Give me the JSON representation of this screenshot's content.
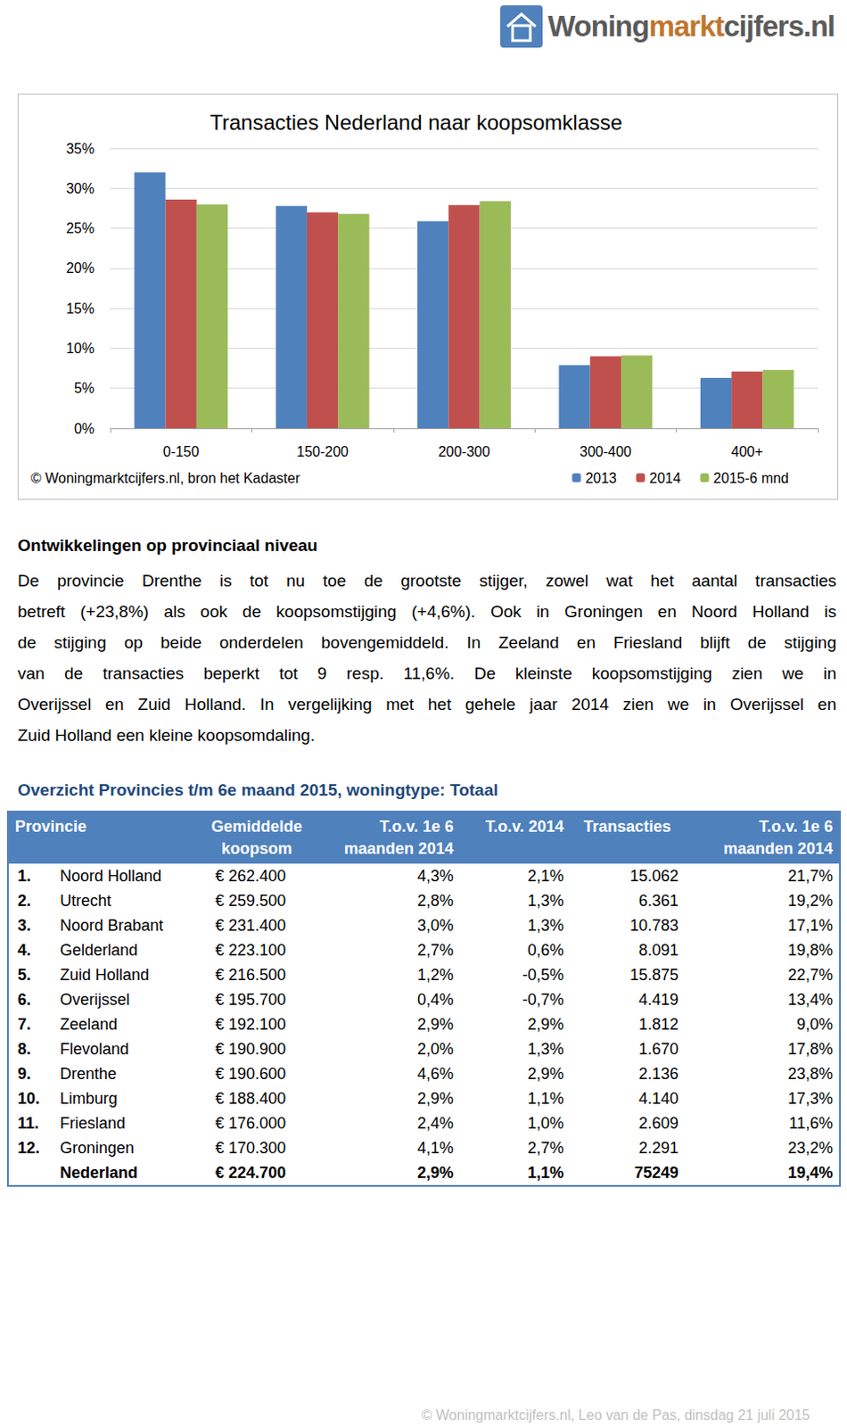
{
  "logo": [
    "Woning",
    "markt",
    "cijfers.nl"
  ],
  "chart_data": {
    "type": "bar",
    "title": "Transacties Nederland naar koopsomklasse",
    "categories": [
      "0-150",
      "150-200",
      "200-300",
      "300-400",
      "400+"
    ],
    "series": [
      {
        "name": "2013",
        "color": "#4f81bd",
        "values": [
          32.0,
          27.8,
          25.9,
          7.9,
          6.3
        ]
      },
      {
        "name": "2014",
        "color": "#c0504d",
        "values": [
          28.6,
          27.0,
          27.9,
          9.0,
          7.1
        ]
      },
      {
        "name": "2015-6 mnd",
        "color": "#9bbb59",
        "values": [
          28.0,
          26.8,
          28.4,
          9.1,
          7.3
        ]
      }
    ],
    "ylim": [
      0,
      35
    ],
    "yticks": [
      {
        "value": 0,
        "label": "0%"
      },
      {
        "value": 5,
        "label": "5%"
      },
      {
        "value": 10,
        "label": "10%"
      },
      {
        "value": 15,
        "label": "15%"
      },
      {
        "value": 20,
        "label": "20%"
      },
      {
        "value": 25,
        "label": "25%"
      },
      {
        "value": 30,
        "label": "30%"
      },
      {
        "value": 35,
        "label": "35%"
      }
    ],
    "grid": true,
    "legend": "lower right",
    "annotation": "© Woningmarktcijfers.nl, bron het Kadaster"
  },
  "section": {
    "heading": "Ontwikkelingen op provinciaal niveau",
    "lines": [
      "De provincie Drenthe is tot nu toe de grootste stijger, zowel wat het aantal transacties",
      "betreft (+23,8%) als ook de koopsomstijging (+4,6%). Ook in Groningen en Noord Holland is",
      "de stijging op beide onderdelen bovengemiddeld. In Zeeland en Friesland blijft de stijging",
      "van de transacties beperkt tot 9 resp. 11,6%. De kleinste koopsomstijging zien we in",
      "Overijssel en Zuid Holland. In vergelijking met het gehele jaar 2014 zien we in Overijssel en",
      "Zuid Holland een kleine koopsomdaling."
    ]
  },
  "table": {
    "title": "Overzicht Provincies t/m 6e maand 2015, woningtype: Totaal",
    "header": [
      [
        "Provincie"
      ],
      [
        "Gemiddelde",
        "koopsom"
      ],
      [
        "T.o.v. 1e 6",
        "maanden 2014"
      ],
      [
        "T.o.v. 2014"
      ],
      [
        "Transacties"
      ],
      [
        "T.o.v. 1e 6",
        "maanden 2014"
      ]
    ],
    "rows": [
      [
        "1.",
        "Noord Holland",
        "€ 262.400",
        "4,3%",
        "2,1%",
        "15.062",
        "21,7%"
      ],
      [
        "2.",
        "Utrecht",
        "€ 259.500",
        "2,8%",
        "1,3%",
        "6.361",
        "19,2%"
      ],
      [
        "3.",
        "Noord Brabant",
        "€ 231.400",
        "3,0%",
        "1,3%",
        "10.783",
        "17,1%"
      ],
      [
        "4.",
        "Gelderland",
        "€ 223.100",
        "2,7%",
        "0,6%",
        "8.091",
        "19,8%"
      ],
      [
        "5.",
        "Zuid Holland",
        "€ 216.500",
        "1,2%",
        "-0,5%",
        "15.875",
        "22,7%"
      ],
      [
        "6.",
        "Overijssel",
        "€ 195.700",
        "0,4%",
        "-0,7%",
        "4.419",
        "13,4%"
      ],
      [
        "7.",
        "Zeeland",
        "€ 192.100",
        "2,9%",
        "2,9%",
        "1.812",
        "9,0%"
      ],
      [
        "8.",
        "Flevoland",
        "€ 190.900",
        "2,0%",
        "1,3%",
        "1.670",
        "17,8%"
      ],
      [
        "9.",
        "Drenthe",
        "€ 190.600",
        "4,6%",
        "2,9%",
        "2.136",
        "23,8%"
      ],
      [
        "10.",
        "Limburg",
        "€ 188.400",
        "2,9%",
        "1,1%",
        "4.140",
        "17,3%"
      ],
      [
        "11.",
        "Friesland",
        "€ 176.000",
        "2,4%",
        "1,0%",
        "2.609",
        "11,6%"
      ],
      [
        "12.",
        "Groningen",
        "€ 170.300",
        "4,1%",
        "2,7%",
        "2.291",
        "23,2%"
      ]
    ],
    "total": [
      "Nederland",
      "€ 224.700",
      "2,9%",
      "1,1%",
      "75249",
      "19,4%"
    ]
  },
  "footer": "© Woningmarktcijfers.nl, Leo van de Pas, dinsdag 21 juli 2015"
}
